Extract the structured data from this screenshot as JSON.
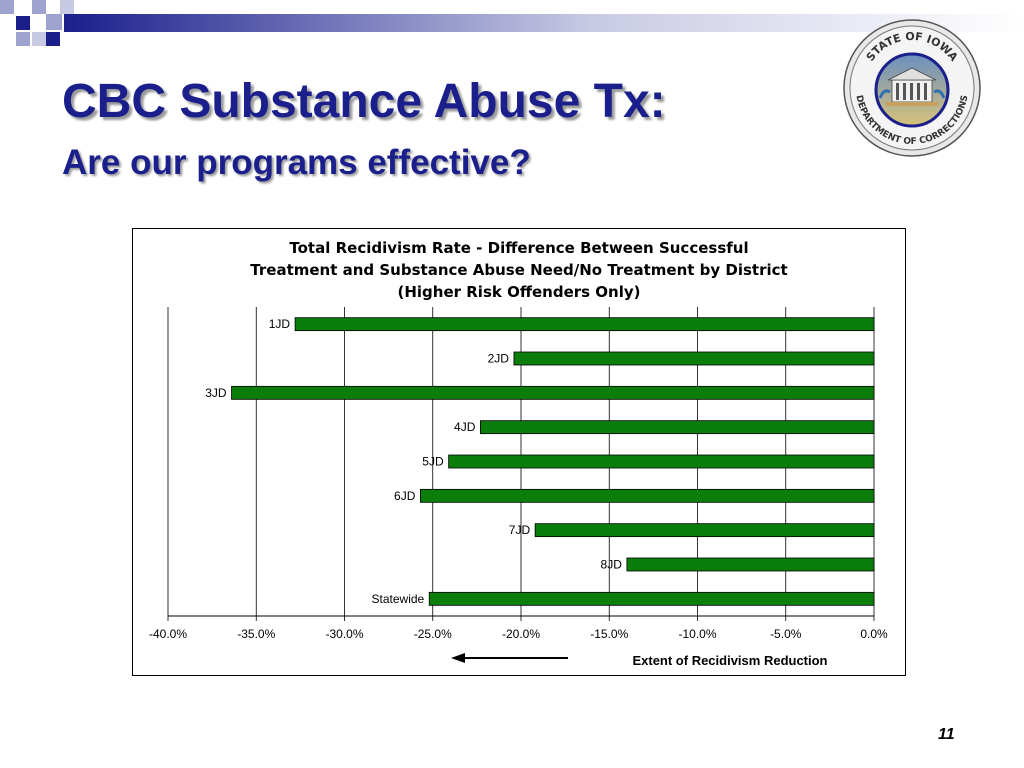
{
  "slide": {
    "title": "CBC Substance Abuse Tx:",
    "subtitle": "Are our programs effective?",
    "page_number": "11"
  },
  "colors": {
    "title": "#1a1f8c",
    "bar": "#0a7d0a",
    "square_dark": "#1a1f8c",
    "square_light": "#9fa3cf"
  },
  "logo": {
    "top_text": "STATE OF IOWA",
    "bottom_text": "DEPARTMENT OF CORRECTIONS"
  },
  "chart_data": {
    "type": "bar",
    "orientation": "horizontal",
    "title_lines": [
      "Total Recidivism Rate - Difference Between Successful",
      "Treatment and Substance Abuse Need/No Treatment by District",
      "(Higher Risk Offenders Only)"
    ],
    "categories": [
      "1JD",
      "2JD",
      "3JD",
      "4JD",
      "5JD",
      "6JD",
      "7JD",
      "8JD",
      "Statewide"
    ],
    "values": [
      -32.8,
      -20.4,
      -36.4,
      -22.3,
      -24.1,
      -25.7,
      -19.2,
      -14.0,
      -25.2
    ],
    "xlim": [
      -40,
      0
    ],
    "xticks": [
      "-40.0%",
      "-35.0%",
      "-30.0%",
      "-25.0%",
      "-20.0%",
      "-15.0%",
      "-10.0%",
      "-5.0%",
      "0.0%"
    ],
    "xlabel": "Extent of Recidivism Reduction",
    "grid": true,
    "legend": "none"
  }
}
